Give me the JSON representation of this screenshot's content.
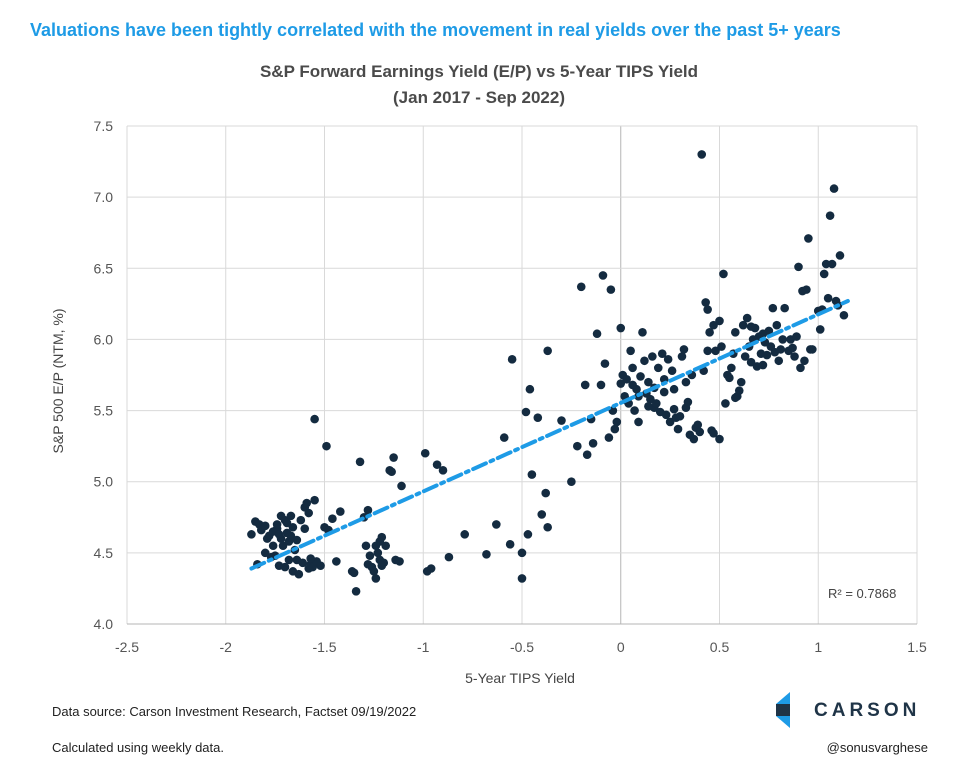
{
  "headline": "Valuations have been tightly correlated with the movement in real yields over the past 5+ years",
  "footer": {
    "source": "Data source: Carson Investment Research, Factset   09/19/2022",
    "note": "Calculated using weekly data.",
    "handle": "@sonusvarghese",
    "logo_text": "CARSON",
    "logo_color": "#1e9be6"
  },
  "chart_data": {
    "type": "scatter",
    "title": "S&P Forward Earnings Yield (E/P) vs 5-Year TIPS Yield",
    "subtitle": "(Jan 2017 - Sep 2022)",
    "xlabel": "5-Year TIPS Yield",
    "ylabel": "S&P 500  E/P (NTM, %)",
    "xlim": [
      -2.5,
      1.5
    ],
    "ylim": [
      4.0,
      7.5
    ],
    "xticks": [
      "-2.5",
      "-2",
      "-1.5",
      "-1",
      "-0.5",
      "0",
      "0.5",
      "1",
      "1.5"
    ],
    "yticks": [
      "4.0",
      "4.5",
      "5.0",
      "5.5",
      "6.0",
      "6.5",
      "7.0",
      "7.5"
    ],
    "grid": true,
    "point_color": "#142b40",
    "trendline": {
      "color": "#1e9be6",
      "style": "dash-dot",
      "x": [
        -1.87,
        1.15
      ],
      "y": [
        4.39,
        6.27
      ]
    },
    "r_squared_label": "R² = 0.7868",
    "points": [
      [
        -1.87,
        4.63
      ],
      [
        -1.85,
        4.72
      ],
      [
        -1.83,
        4.7
      ],
      [
        -1.82,
        4.66
      ],
      [
        -1.8,
        4.69
      ],
      [
        -1.78,
        4.62
      ],
      [
        -1.76,
        4.65
      ],
      [
        -1.75,
        4.48
      ],
      [
        -1.74,
        4.67
      ],
      [
        -1.72,
        4.6
      ],
      [
        -1.71,
        4.55
      ],
      [
        -1.7,
        4.73
      ],
      [
        -1.69,
        4.64
      ],
      [
        -1.68,
        4.58
      ],
      [
        -1.67,
        4.76
      ],
      [
        -1.66,
        4.68
      ],
      [
        -1.65,
        4.52
      ],
      [
        -1.64,
        4.45
      ],
      [
        -1.62,
        4.73
      ],
      [
        -1.6,
        4.82
      ],
      [
        -1.59,
        4.85
      ],
      [
        -1.58,
        4.78
      ],
      [
        -1.57,
        4.42
      ],
      [
        -1.56,
        4.4
      ],
      [
        -1.55,
        4.87
      ],
      [
        -1.54,
        4.44
      ],
      [
        -1.52,
        4.41
      ],
      [
        -1.5,
        4.68
      ],
      [
        -1.48,
        4.66
      ],
      [
        -1.46,
        4.74
      ],
      [
        -1.84,
        4.42
      ],
      [
        -1.8,
        4.5
      ],
      [
        -1.77,
        4.47
      ],
      [
        -1.73,
        4.41
      ],
      [
        -1.7,
        4.4
      ],
      [
        -1.68,
        4.45
      ],
      [
        -1.66,
        4.37
      ],
      [
        -1.63,
        4.35
      ],
      [
        -1.61,
        4.43
      ],
      [
        -1.58,
        4.39
      ],
      [
        -1.74,
        4.7
      ],
      [
        -1.72,
        4.76
      ],
      [
        -1.79,
        4.6
      ],
      [
        -1.76,
        4.55
      ],
      [
        -1.73,
        4.63
      ],
      [
        -1.69,
        4.71
      ],
      [
        -1.67,
        4.62
      ],
      [
        -1.64,
        4.59
      ],
      [
        -1.6,
        4.67
      ],
      [
        -1.57,
        4.46
      ],
      [
        -1.55,
        5.44
      ],
      [
        -1.49,
        5.25
      ],
      [
        -1.44,
        4.44
      ],
      [
        -1.42,
        4.79
      ],
      [
        -1.36,
        4.37
      ],
      [
        -1.35,
        4.36
      ],
      [
        -1.34,
        4.23
      ],
      [
        -1.32,
        5.14
      ],
      [
        -1.3,
        4.75
      ],
      [
        -1.29,
        4.55
      ],
      [
        -1.28,
        4.8
      ],
      [
        -1.27,
        4.48
      ],
      [
        -1.26,
        4.4
      ],
      [
        -1.25,
        4.37
      ],
      [
        -1.24,
        4.55
      ],
      [
        -1.23,
        4.5
      ],
      [
        -1.22,
        4.45
      ],
      [
        -1.21,
        4.61
      ],
      [
        -1.2,
        4.43
      ],
      [
        -1.19,
        4.55
      ],
      [
        -1.17,
        5.08
      ],
      [
        -1.16,
        5.07
      ],
      [
        -1.15,
        5.17
      ],
      [
        -1.14,
        4.45
      ],
      [
        -1.12,
        4.44
      ],
      [
        -1.11,
        4.97
      ],
      [
        -1.24,
        4.32
      ],
      [
        -1.21,
        4.41
      ],
      [
        -1.28,
        4.42
      ],
      [
        -1.22,
        4.58
      ],
      [
        -0.99,
        5.2
      ],
      [
        -0.98,
        4.37
      ],
      [
        -0.96,
        4.39
      ],
      [
        -0.93,
        5.12
      ],
      [
        -0.9,
        5.08
      ],
      [
        -0.87,
        4.47
      ],
      [
        -0.79,
        4.63
      ],
      [
        -0.68,
        4.49
      ],
      [
        -0.63,
        4.7
      ],
      [
        -0.56,
        4.56
      ],
      [
        -0.5,
        4.32
      ],
      [
        -0.5,
        4.5
      ],
      [
        -0.48,
        5.49
      ],
      [
        -0.47,
        4.63
      ],
      [
        -0.46,
        5.65
      ],
      [
        -0.45,
        5.05
      ],
      [
        -0.42,
        5.45
      ],
      [
        -0.4,
        4.77
      ],
      [
        -0.38,
        4.92
      ],
      [
        -0.37,
        4.68
      ],
      [
        -0.37,
        5.92
      ],
      [
        -0.55,
        5.86
      ],
      [
        -0.59,
        5.31
      ],
      [
        -0.3,
        5.43
      ],
      [
        -0.25,
        5.0
      ],
      [
        -0.22,
        5.25
      ],
      [
        -0.2,
        6.37
      ],
      [
        -0.18,
        5.68
      ],
      [
        -0.17,
        5.19
      ],
      [
        -0.15,
        5.44
      ],
      [
        -0.14,
        5.27
      ],
      [
        -0.12,
        6.04
      ],
      [
        -0.1,
        5.68
      ],
      [
        -0.09,
        6.45
      ],
      [
        -0.08,
        5.83
      ],
      [
        -0.06,
        5.31
      ],
      [
        -0.05,
        6.35
      ],
      [
        -0.04,
        5.5
      ],
      [
        -0.03,
        5.37
      ],
      [
        -0.02,
        5.42
      ],
      [
        0.0,
        5.69
      ],
      [
        0.0,
        6.08
      ],
      [
        0.01,
        5.75
      ],
      [
        0.02,
        5.6
      ],
      [
        0.03,
        5.57
      ],
      [
        0.04,
        5.55
      ],
      [
        0.05,
        5.92
      ],
      [
        0.06,
        5.8
      ],
      [
        0.07,
        5.5
      ],
      [
        0.08,
        5.65
      ],
      [
        0.09,
        5.42
      ],
      [
        0.1,
        5.74
      ],
      [
        0.11,
        6.05
      ],
      [
        0.12,
        5.85
      ],
      [
        0.13,
        5.62
      ],
      [
        0.14,
        5.7
      ],
      [
        0.15,
        5.58
      ],
      [
        0.16,
        5.88
      ],
      [
        0.17,
        5.52
      ],
      [
        0.18,
        5.55
      ],
      [
        0.19,
        5.8
      ],
      [
        0.2,
        5.49
      ],
      [
        0.21,
        5.9
      ],
      [
        0.22,
        5.63
      ],
      [
        0.23,
        5.47
      ],
      [
        0.24,
        5.86
      ],
      [
        0.25,
        5.42
      ],
      [
        0.26,
        5.78
      ],
      [
        0.27,
        5.65
      ],
      [
        0.28,
        5.45
      ],
      [
        0.29,
        5.37
      ],
      [
        0.3,
        5.46
      ],
      [
        0.31,
        5.88
      ],
      [
        0.32,
        5.93
      ],
      [
        0.33,
        5.52
      ],
      [
        0.34,
        5.56
      ],
      [
        0.35,
        5.33
      ],
      [
        0.36,
        5.75
      ],
      [
        0.37,
        5.3
      ],
      [
        0.38,
        5.38
      ],
      [
        0.39,
        5.4
      ],
      [
        0.4,
        5.35
      ],
      [
        0.41,
        7.3
      ],
      [
        0.42,
        5.78
      ],
      [
        0.43,
        6.26
      ],
      [
        0.44,
        6.21
      ],
      [
        0.45,
        6.05
      ],
      [
        0.46,
        5.36
      ],
      [
        0.47,
        5.34
      ],
      [
        0.48,
        5.92
      ],
      [
        0.5,
        6.13
      ],
      [
        0.5,
        5.3
      ],
      [
        0.51,
        5.95
      ],
      [
        0.52,
        6.46
      ],
      [
        0.53,
        5.55
      ],
      [
        0.54,
        5.75
      ],
      [
        0.56,
        5.8
      ],
      [
        0.57,
        5.9
      ],
      [
        0.58,
        6.05
      ],
      [
        0.59,
        5.6
      ],
      [
        0.6,
        5.64
      ],
      [
        0.61,
        5.7
      ],
      [
        0.62,
        6.1
      ],
      [
        0.63,
        5.88
      ],
      [
        0.64,
        6.15
      ],
      [
        0.65,
        5.95
      ],
      [
        0.66,
        5.84
      ],
      [
        0.67,
        6.0
      ],
      [
        0.68,
        6.08
      ],
      [
        0.69,
        5.81
      ],
      [
        0.7,
        6.02
      ],
      [
        0.71,
        5.9
      ],
      [
        0.72,
        6.04
      ],
      [
        0.73,
        5.98
      ],
      [
        0.74,
        5.89
      ],
      [
        0.75,
        6.06
      ],
      [
        0.76,
        5.95
      ],
      [
        0.77,
        6.22
      ],
      [
        0.78,
        5.91
      ],
      [
        0.79,
        6.1
      ],
      [
        0.8,
        5.85
      ],
      [
        0.82,
        6.0
      ],
      [
        0.83,
        6.22
      ],
      [
        0.85,
        5.92
      ],
      [
        0.86,
        6.0
      ],
      [
        0.88,
        5.88
      ],
      [
        0.89,
        6.02
      ],
      [
        0.9,
        6.51
      ],
      [
        0.91,
        5.8
      ],
      [
        0.92,
        6.34
      ],
      [
        0.93,
        5.85
      ],
      [
        0.94,
        6.35
      ],
      [
        0.95,
        6.71
      ],
      [
        0.96,
        5.93
      ],
      [
        1.0,
        6.2
      ],
      [
        1.01,
        6.07
      ],
      [
        1.02,
        6.21
      ],
      [
        1.03,
        6.46
      ],
      [
        1.04,
        6.53
      ],
      [
        1.05,
        6.29
      ],
      [
        1.06,
        6.87
      ],
      [
        1.07,
        6.53
      ],
      [
        1.08,
        7.06
      ],
      [
        1.09,
        6.27
      ],
      [
        1.1,
        6.24
      ],
      [
        1.11,
        6.59
      ],
      [
        1.13,
        6.17
      ],
      [
        0.03,
        5.72
      ],
      [
        0.06,
        5.68
      ],
      [
        0.09,
        5.6
      ],
      [
        0.14,
        5.53
      ],
      [
        0.17,
        5.66
      ],
      [
        0.22,
        5.72
      ],
      [
        0.27,
        5.51
      ],
      [
        0.33,
        5.7
      ],
      [
        0.44,
        5.92
      ],
      [
        0.47,
        6.1
      ],
      [
        0.55,
        5.73
      ],
      [
        0.58,
        5.59
      ],
      [
        0.66,
        6.09
      ],
      [
        0.72,
        5.82
      ],
      [
        0.81,
        5.93
      ],
      [
        0.87,
        5.94
      ],
      [
        0.97,
        5.93
      ]
    ]
  }
}
